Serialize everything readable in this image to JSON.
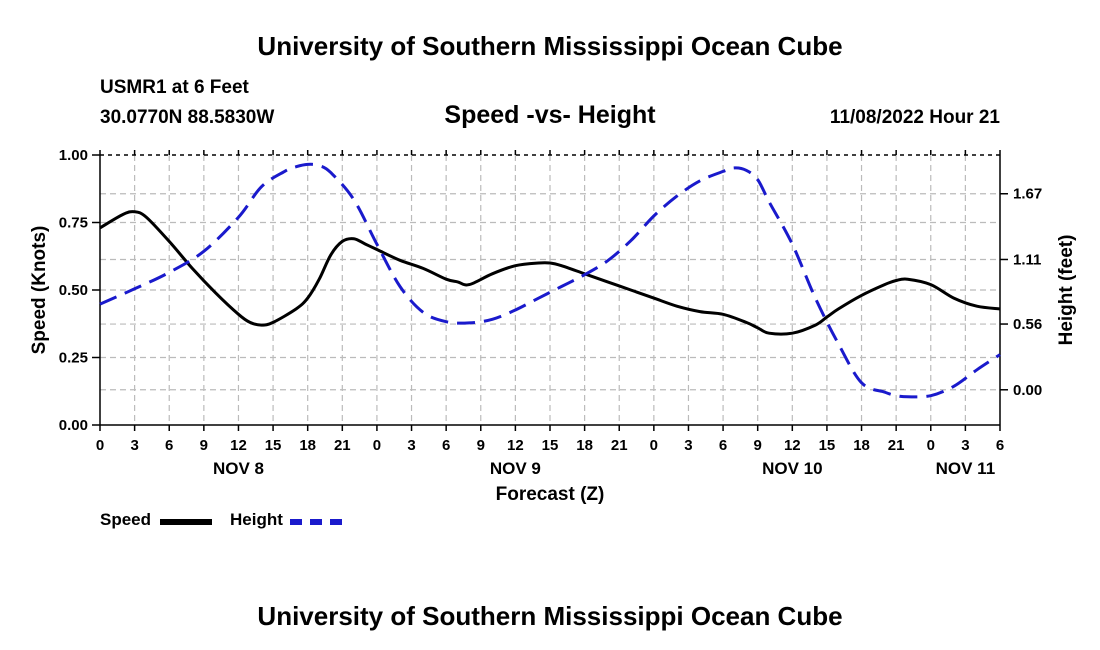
{
  "header": {
    "title": "University of Southern Mississippi Ocean Cube",
    "station": "USMR1 at 6 Feet",
    "coords": "30.0770N  88.5830W",
    "subtitle": "Speed -vs- Height",
    "datetime": "11/08/2022 Hour 21",
    "footer_title": "University of Southern Mississippi Ocean Cube"
  },
  "legend": {
    "speed_label": "Speed",
    "height_label": "Height"
  },
  "colors": {
    "speed": "#000000",
    "height": "#1a1acc",
    "grid": "#bbbbbb"
  },
  "chart_data": {
    "type": "line",
    "title": "Speed -vs- Height",
    "xlabel": "Forecast (Z)",
    "ylabel": "Speed (Knots)",
    "y2label": "Height (feet)",
    "x_unit": "hours from Nov 8 00Z",
    "xlim": [
      0,
      78
    ],
    "ylim": [
      0,
      1.0
    ],
    "y2lim": [
      -0.3,
      2.0
    ],
    "x_ticks": [
      0,
      3,
      6,
      9,
      12,
      15,
      18,
      21,
      24,
      27,
      30,
      33,
      36,
      39,
      42,
      45,
      48,
      51,
      54,
      57,
      60,
      63,
      66,
      69,
      72,
      75,
      78
    ],
    "x_tick_labels": [
      "0",
      "3",
      "6",
      "9",
      "12",
      "15",
      "18",
      "21",
      "0",
      "3",
      "6",
      "9",
      "12",
      "15",
      "18",
      "21",
      "0",
      "3",
      "6",
      "9",
      "12",
      "15",
      "18",
      "21",
      "0",
      "3",
      "6"
    ],
    "day_labels": [
      {
        "x": 12,
        "label": "NOV 8"
      },
      {
        "x": 36,
        "label": "NOV 9"
      },
      {
        "x": 60,
        "label": "NOV 10"
      },
      {
        "x": 75,
        "label": "NOV 11"
      }
    ],
    "y_ticks": [
      0.0,
      0.25,
      0.5,
      0.75,
      1.0
    ],
    "y_tick_labels": [
      "0.00",
      "0.25",
      "0.50",
      "0.75",
      "1.00"
    ],
    "y2_ticks": [
      0.0,
      0.56,
      1.11,
      1.67
    ],
    "y2_tick_labels": [
      "0.00",
      "0.56",
      "1.11",
      "1.67"
    ],
    "series": [
      {
        "name": "Speed",
        "axis": "left",
        "style": "solid",
        "x": [
          0,
          2,
          3,
          4,
          6,
          8,
          10,
          12,
          13,
          14,
          15,
          17,
          18,
          19,
          20,
          21,
          22,
          23,
          24,
          26,
          28,
          30,
          31,
          32,
          34,
          36,
          38,
          39,
          40,
          42,
          44,
          46,
          48,
          50,
          52,
          54,
          56,
          57,
          58,
          60,
          62,
          63,
          64,
          66,
          68,
          69,
          70,
          72,
          74,
          76,
          78
        ],
        "values": [
          0.73,
          0.78,
          0.79,
          0.77,
          0.68,
          0.58,
          0.49,
          0.41,
          0.38,
          0.37,
          0.38,
          0.43,
          0.47,
          0.54,
          0.63,
          0.68,
          0.69,
          0.67,
          0.65,
          0.61,
          0.58,
          0.54,
          0.53,
          0.52,
          0.56,
          0.59,
          0.6,
          0.6,
          0.59,
          0.56,
          0.53,
          0.5,
          0.47,
          0.44,
          0.42,
          0.41,
          0.38,
          0.36,
          0.34,
          0.34,
          0.37,
          0.4,
          0.43,
          0.48,
          0.52,
          0.535,
          0.54,
          0.52,
          0.47,
          0.44,
          0.43
        ]
      },
      {
        "name": "Height",
        "axis": "right",
        "style": "dashed",
        "x": [
          0,
          3,
          6,
          9,
          12,
          14,
          16,
          17,
          18,
          19,
          20,
          22,
          24,
          26,
          28,
          30,
          32,
          34,
          36,
          38,
          40,
          42,
          44,
          46,
          48,
          50,
          52,
          54,
          55,
          56,
          57,
          58,
          60,
          62,
          64,
          66,
          68,
          69,
          70,
          72,
          74,
          76,
          78
        ],
        "values": [
          0.73,
          0.86,
          1.0,
          1.18,
          1.47,
          1.73,
          1.86,
          1.9,
          1.92,
          1.91,
          1.85,
          1.62,
          1.24,
          0.88,
          0.66,
          0.58,
          0.57,
          0.6,
          0.68,
          0.78,
          0.88,
          0.98,
          1.1,
          1.27,
          1.48,
          1.65,
          1.78,
          1.86,
          1.89,
          1.87,
          1.79,
          1.6,
          1.24,
          0.78,
          0.39,
          0.06,
          -0.02,
          -0.05,
          -0.06,
          -0.05,
          0.03,
          0.17,
          0.3
        ]
      }
    ]
  }
}
